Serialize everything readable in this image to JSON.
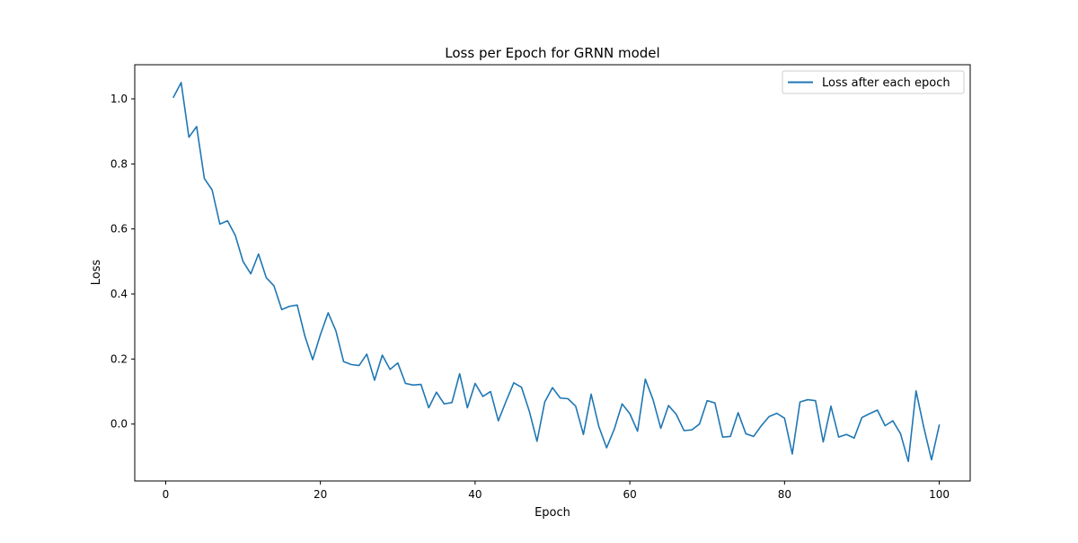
{
  "chart_data": {
    "type": "line",
    "title": "Loss per Epoch for GRNN model",
    "xlabel": "Epoch",
    "ylabel": "Loss",
    "xlim": [
      -4,
      104
    ],
    "ylim": [
      -0.175,
      1.105
    ],
    "xticks": [
      0,
      20,
      40,
      60,
      80,
      100
    ],
    "yticks": [
      0.0,
      0.2,
      0.4,
      0.6,
      0.8,
      1.0
    ],
    "xtick_labels": [
      "0",
      "20",
      "40",
      "60",
      "80",
      "100"
    ],
    "ytick_labels": [
      "0.0",
      "0.2",
      "0.4",
      "0.6",
      "0.8",
      "1.0"
    ],
    "grid": false,
    "legend_position": "top-right",
    "series": [
      {
        "name": "Loss after each epoch",
        "color": "#1f77b4",
        "x": [
          1,
          2,
          3,
          4,
          5,
          6,
          7,
          8,
          9,
          10,
          11,
          12,
          13,
          14,
          15,
          16,
          17,
          18,
          19,
          20,
          21,
          22,
          23,
          24,
          25,
          26,
          27,
          28,
          29,
          30,
          31,
          32,
          33,
          34,
          35,
          36,
          37,
          38,
          39,
          40,
          41,
          42,
          43,
          44,
          45,
          46,
          47,
          48,
          49,
          50,
          51,
          52,
          53,
          54,
          55,
          56,
          57,
          58,
          59,
          60,
          61,
          62,
          63,
          64,
          65,
          66,
          67,
          68,
          69,
          70,
          71,
          72,
          73,
          74,
          75,
          76,
          77,
          78,
          79,
          80,
          81,
          82,
          83,
          84,
          85,
          86,
          87,
          88,
          89,
          90,
          91,
          92,
          93,
          94,
          95,
          96,
          97,
          98,
          99,
          100
        ],
        "y": [
          1.005,
          1.05,
          0.882,
          0.915,
          0.755,
          0.72,
          0.615,
          0.625,
          0.58,
          0.5,
          0.462,
          0.523,
          0.45,
          0.425,
          0.352,
          0.362,
          0.366,
          0.27,
          0.198,
          0.275,
          0.342,
          0.287,
          0.192,
          0.183,
          0.18,
          0.215,
          0.135,
          0.212,
          0.168,
          0.188,
          0.125,
          0.12,
          0.122,
          0.05,
          0.098,
          0.062,
          0.066,
          0.155,
          0.05,
          0.125,
          0.085,
          0.1,
          0.01,
          0.07,
          0.127,
          0.113,
          0.04,
          -0.053,
          0.068,
          0.112,
          0.08,
          0.078,
          0.055,
          -0.032,
          0.092,
          -0.008,
          -0.073,
          -0.015,
          0.062,
          0.032,
          -0.022,
          0.138,
          0.075,
          -0.013,
          0.057,
          0.03,
          -0.02,
          -0.018,
          0.0,
          0.072,
          0.065,
          -0.04,
          -0.038,
          0.035,
          -0.03,
          -0.038,
          -0.005,
          0.023,
          0.033,
          0.018,
          -0.092,
          0.068,
          0.075,
          0.072,
          -0.055,
          0.055,
          -0.04,
          -0.032,
          -0.043,
          0.02,
          0.032,
          0.043,
          -0.005,
          0.01,
          -0.03,
          -0.115,
          0.102,
          -0.01,
          -0.11,
          -0.003
        ]
      }
    ]
  }
}
